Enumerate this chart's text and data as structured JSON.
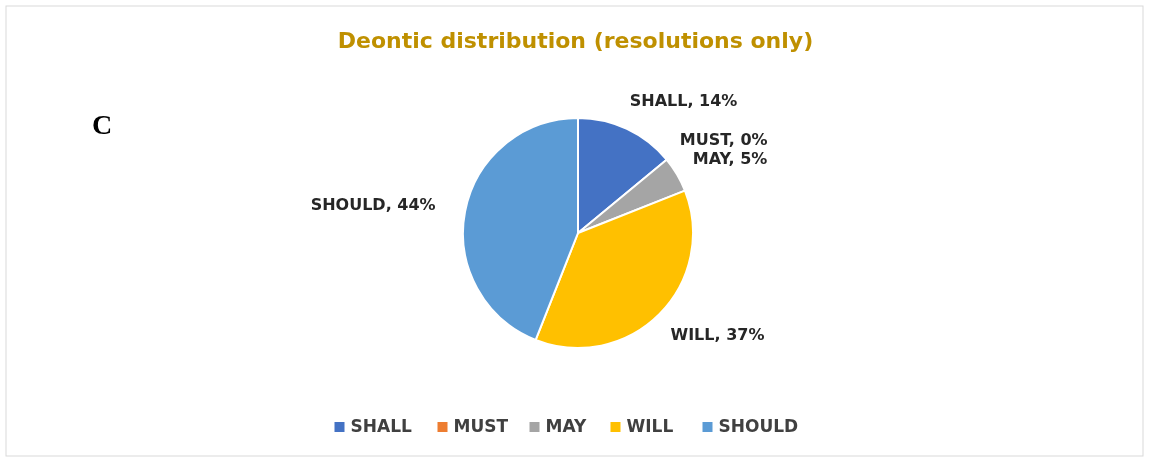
{
  "chart_data": {
    "type": "pie",
    "title": "Deontic distribution (resolutions only)",
    "categories": [
      "SHALL",
      "MUST",
      "MAY",
      "WILL",
      "SHOULD"
    ],
    "values": [
      14,
      0,
      5,
      37,
      44
    ],
    "colors": [
      "#4472c4",
      "#ed7d31",
      "#a5a5a5",
      "#ffc000",
      "#5b9bd5"
    ],
    "value_labels": [
      "SHALL, 14%",
      "MUST, 0%",
      "MAY, 5%",
      "WILL, 37%",
      "SHOULD, 44%"
    ],
    "annotations": [
      "C"
    ],
    "legend": "bottom"
  }
}
